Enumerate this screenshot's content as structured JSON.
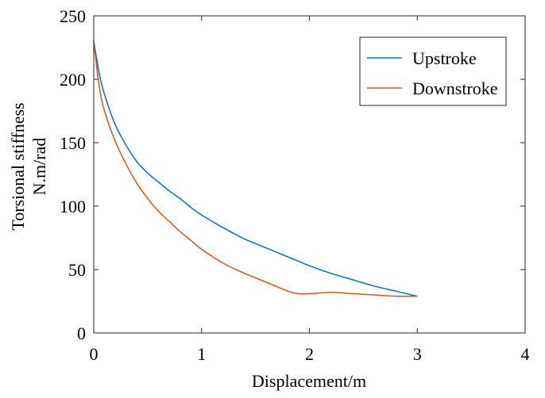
{
  "chart_data": {
    "type": "line",
    "title": "",
    "xlabel": "Displacement/m",
    "ylabel_lines": [
      "Torsional stiffness",
      "N.m/rad"
    ],
    "xlim": [
      0,
      4
    ],
    "ylim": [
      0,
      250
    ],
    "x_ticks": [
      0,
      1,
      2,
      3,
      4
    ],
    "y_ticks": [
      0,
      50,
      100,
      150,
      200,
      250
    ],
    "grid": false,
    "legend_position": "top-right",
    "series": [
      {
        "name": "Upstroke",
        "color": "#0072BD",
        "x": [
          0,
          0.05,
          0.1,
          0.2,
          0.3,
          0.4,
          0.5,
          0.6,
          0.7,
          0.8,
          0.9,
          1.0,
          1.2,
          1.4,
          1.6,
          1.8,
          2.0,
          2.2,
          2.4,
          2.6,
          2.8,
          3.0
        ],
        "y": [
          230,
          205,
          188,
          164,
          148,
          135,
          126,
          119,
          112,
          106,
          99,
          93,
          83,
          74,
          67,
          60,
          53,
          47,
          42,
          37,
          33,
          29
        ]
      },
      {
        "name": "Downstroke",
        "color": "#D95319",
        "x": [
          0,
          0.05,
          0.1,
          0.2,
          0.3,
          0.4,
          0.5,
          0.6,
          0.7,
          0.8,
          0.9,
          1.0,
          1.2,
          1.4,
          1.6,
          1.8,
          1.9,
          2.0,
          2.2,
          2.4,
          2.6,
          2.8,
          3.0
        ],
        "y": [
          230,
          195,
          175,
          151,
          133,
          118,
          106,
          96,
          88,
          80,
          73,
          66,
          55,
          47,
          40,
          33,
          31,
          31,
          32,
          31,
          30,
          29,
          29
        ]
      }
    ]
  }
}
